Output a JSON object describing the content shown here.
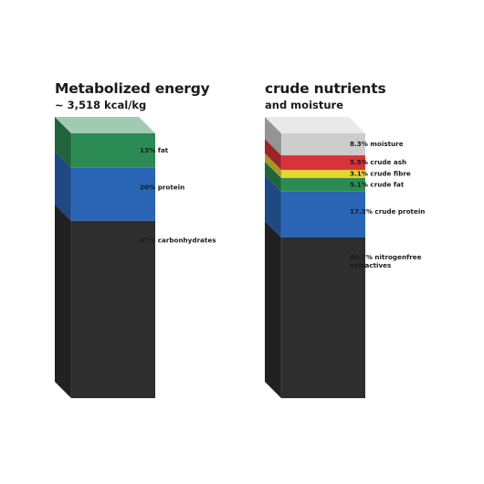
{
  "chart_data": [
    {
      "type": "bar",
      "title": "Metabolized energy",
      "subtitle": "~ 3,518 kcal/kg",
      "unit": "%",
      "segments": [
        {
          "label": "67% carbonhydrates",
          "value": 67,
          "color": "#2e2e2e"
        },
        {
          "label": "20% protein",
          "value": 20,
          "color": "#2a65b6"
        },
        {
          "label": "13% fat",
          "value": 13,
          "color": "#2c8b54"
        }
      ]
    },
    {
      "type": "bar",
      "title": "crude nutrients",
      "subtitle": "and moisture",
      "unit": "%",
      "segments": [
        {
          "label": "60.7% nitrogenfree extractives",
          "value": 60.7,
          "color": "#2e2e2e"
        },
        {
          "label": "17.3% crude protein",
          "value": 17.3,
          "color": "#2a65b6"
        },
        {
          "label": "5.1% crude fat",
          "value": 5.1,
          "color": "#2c8b54"
        },
        {
          "label": "3.1% crude fibre",
          "value": 3.1,
          "color": "#e5d533"
        },
        {
          "label": "5.5% crude ash",
          "value": 5.5,
          "color": "#d8333a"
        },
        {
          "label": "8.3% moisture",
          "value": 8.3,
          "color": "#cdcdcd"
        }
      ]
    }
  ]
}
